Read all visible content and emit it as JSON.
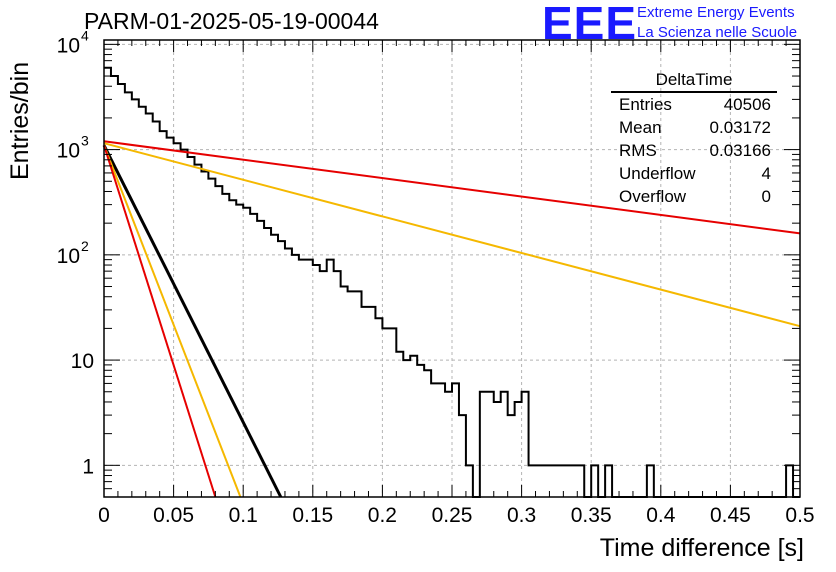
{
  "header": {
    "title": "PARM-01-2025-05-19-00044",
    "logo_text": "EEE",
    "org_line1": "Extreme Energy Events",
    "org_line2": "La Scienza nelle Scuole"
  },
  "stats": {
    "title": "DeltaTime",
    "rows": [
      {
        "label": "Entries",
        "value": "40506"
      },
      {
        "label": "Mean",
        "value": "0.03172"
      },
      {
        "label": "RMS",
        "value": "0.03166"
      },
      {
        "label": "Underflow",
        "value": "4"
      },
      {
        "label": "Overflow",
        "value": "0"
      }
    ]
  },
  "chart_data": {
    "type": "histogram",
    "xlabel": "Time difference [s]",
    "ylabel": "Entries/bin",
    "xlim": [
      0,
      0.5
    ],
    "ylim": [
      0.5,
      11000
    ],
    "log_y": true,
    "grid": true,
    "bin_width": 0.005,
    "x_ticks": [
      "0",
      "0.05",
      "0.1",
      "0.15",
      "0.2",
      "0.25",
      "0.3",
      "0.35",
      "0.4",
      "0.45",
      "0.5"
    ],
    "x_tick_values": [
      0,
      0.05,
      0.1,
      0.15,
      0.2,
      0.25,
      0.3,
      0.35,
      0.4,
      0.45,
      0.5
    ],
    "y_ticks": [
      {
        "value": 1,
        "label": "1",
        "exp": ""
      },
      {
        "value": 10,
        "label": "10",
        "exp": ""
      },
      {
        "value": 100,
        "label": "10",
        "exp": "2"
      },
      {
        "value": 1000,
        "label": "10",
        "exp": "3"
      },
      {
        "value": 10000,
        "label": "10",
        "exp": "4"
      }
    ],
    "histogram_values": [
      6000,
      5000,
      4200,
      3500,
      3000,
      2550,
      2200,
      1850,
      1500,
      1300,
      1150,
      1000,
      850,
      720,
      620,
      530,
      450,
      380,
      330,
      300,
      280,
      245,
      210,
      180,
      155,
      135,
      115,
      100,
      90,
      90,
      80,
      70,
      90,
      70,
      50,
      45,
      45,
      32,
      32,
      25,
      20,
      20,
      12,
      10,
      11,
      9,
      8,
      6,
      6,
      5,
      6,
      3,
      1,
      0,
      5,
      5,
      4,
      5,
      3,
      4,
      5,
      1,
      1,
      1,
      1,
      1,
      1,
      1,
      1,
      0,
      1,
      0,
      1,
      0,
      0,
      0,
      0,
      0,
      1,
      0,
      0,
      0,
      0,
      0,
      0,
      0,
      0,
      0,
      0,
      0,
      0,
      0,
      0,
      0,
      0,
      0,
      0,
      0,
      1,
      0
    ],
    "series": [
      {
        "name": "",
        "color": "#e60000",
        "points": [
          [
            0,
            1200
          ],
          [
            0.5,
            160
          ]
        ]
      },
      {
        "name": "",
        "color": "#f5b800",
        "points": [
          [
            0,
            1150
          ],
          [
            0.5,
            21
          ]
        ]
      },
      {
        "name": "",
        "color": "#000000",
        "points": [
          [
            0,
            1100
          ],
          [
            0.127,
            0.5
          ]
        ]
      },
      {
        "name": "",
        "color": "#f5b800",
        "points": [
          [
            0,
            1100
          ],
          [
            0.098,
            0.5
          ]
        ]
      },
      {
        "name": "",
        "color": "#e60000",
        "points": [
          [
            0,
            1100
          ],
          [
            0.08,
            0.5
          ]
        ]
      }
    ]
  }
}
